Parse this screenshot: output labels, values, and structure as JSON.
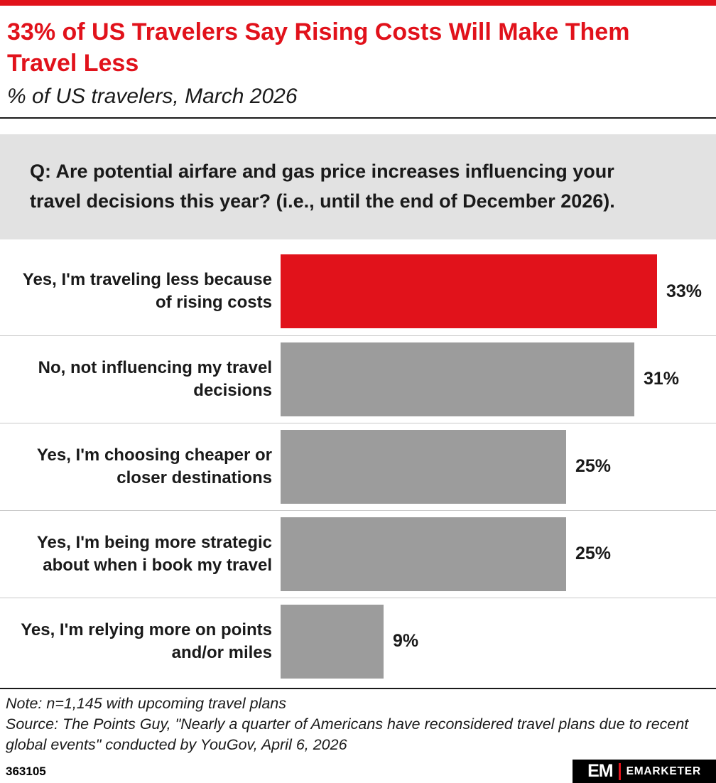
{
  "header": {
    "title": "33% of US Travelers Say Rising Costs Will Make Them Travel Less",
    "subtitle": "% of US travelers, March 2026"
  },
  "question": "Q: Are potential airfare and gas price increases influencing your travel decisions this year? (i.e., until the end of December 2026).",
  "chart_data": {
    "type": "bar",
    "orientation": "horizontal",
    "categories": [
      "Yes, I'm traveling less because of rising costs",
      "No, not influencing my travel decisions",
      "Yes, I'm choosing cheaper or closer destinations",
      "Yes, I'm being more strategic about when i book my travel",
      "Yes, I'm relying more on points and/or miles"
    ],
    "values": [
      33,
      31,
      25,
      25,
      9
    ],
    "value_labels": [
      "33%",
      "31%",
      "25%",
      "25%",
      "9%"
    ],
    "bar_colors": [
      "#e1121b",
      "#9c9c9c",
      "#9c9c9c",
      "#9c9c9c",
      "#9c9c9c"
    ],
    "title": "33% of US Travelers Say Rising Costs Will Make Them Travel Less",
    "subtitle": "% of US travelers, March 2026",
    "xlabel": "",
    "ylabel": "",
    "xlim": [
      0,
      33
    ],
    "grid": false,
    "legend": "none"
  },
  "footnotes": {
    "note": "Note: n=1,145 with upcoming travel plans",
    "source": "Source: The Points Guy, \"Nearly a quarter of Americans have reconsidered travel plans due to recent global events\" conducted by YouGov, April 6, 2026"
  },
  "footer": {
    "chart_id": "363105",
    "logo_text": "EM",
    "brand": "EMARKETER"
  },
  "colors": {
    "accent_red": "#e1121b",
    "bar_gray": "#9c9c9c",
    "question_bg": "#e2e2e2",
    "footer_bg": "#000000"
  }
}
